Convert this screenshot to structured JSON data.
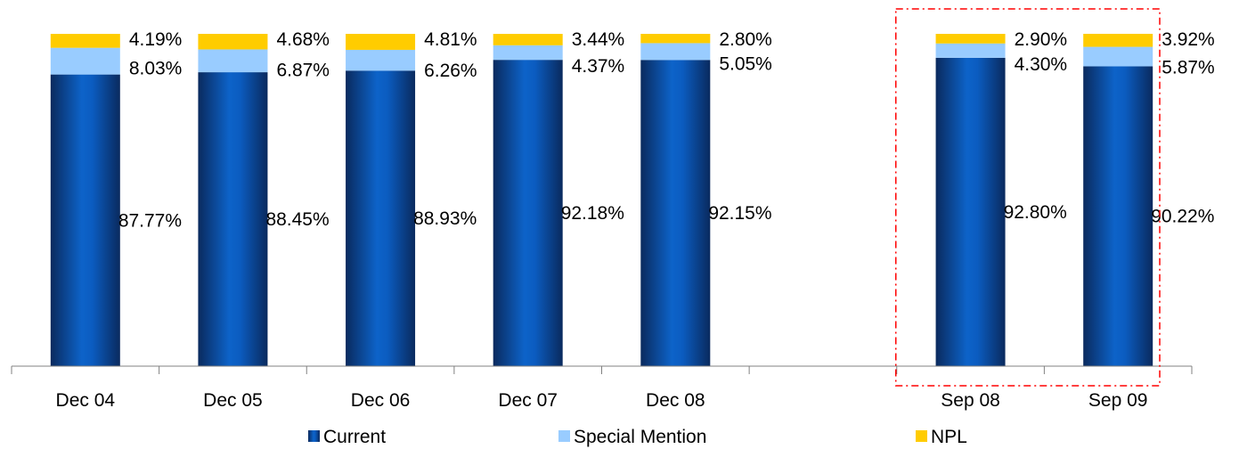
{
  "chart_data": {
    "type": "bar",
    "stacked": true,
    "percent_scale": true,
    "categories": [
      "Dec 04",
      "Dec 05",
      "Dec 06",
      "Dec 07",
      "Dec 08",
      "",
      "Sep 08",
      "Sep 09"
    ],
    "series": [
      {
        "name": "Current",
        "color": "#0057b8",
        "values": [
          87.77,
          88.45,
          88.93,
          92.18,
          92.15,
          null,
          92.8,
          90.22
        ],
        "labels": [
          "87.77%",
          "88.45%",
          "88.93%",
          "92.18%",
          "92.15%",
          "",
          "92.80%",
          "90.22%"
        ]
      },
      {
        "name": "Special Mention",
        "color": "#99ccff",
        "values": [
          8.03,
          6.87,
          6.26,
          4.37,
          5.05,
          null,
          4.3,
          5.87
        ],
        "labels": [
          "8.03%",
          "6.87%",
          "6.26%",
          "4.37%",
          "5.05%",
          "",
          "4.30%",
          "5.87%"
        ]
      },
      {
        "name": "NPL",
        "color": "#ffcc00",
        "values": [
          4.19,
          4.68,
          4.81,
          3.44,
          2.8,
          null,
          2.9,
          3.92
        ],
        "labels": [
          "4.19%",
          "4.68%",
          "4.81%",
          "3.44%",
          "2.80%",
          "",
          "2.90%",
          "3.92%"
        ]
      }
    ],
    "ylim": [
      0,
      100
    ],
    "grid": false,
    "legend": "bottom",
    "highlight": {
      "categories": [
        "Sep 08",
        "Sep 09"
      ],
      "style": "dash-dot",
      "color": "#ff0000"
    }
  }
}
